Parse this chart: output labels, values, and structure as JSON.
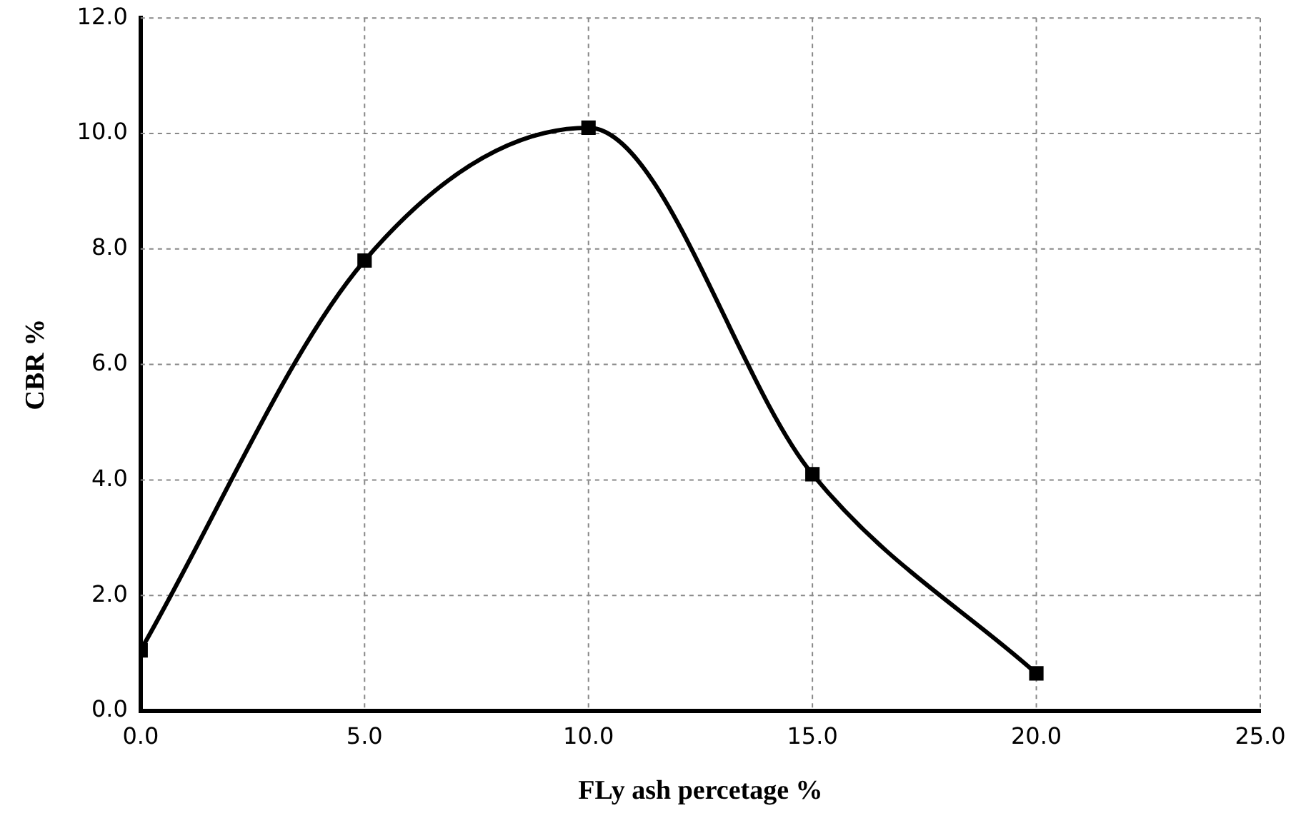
{
  "chart_data": {
    "type": "line",
    "xlabel": "FLy ash percetage %",
    "ylabel": "CBR %",
    "x": [
      0,
      5,
      10,
      15,
      20
    ],
    "series": [
      {
        "color": "#000000",
        "values": [
          1.05,
          7.8,
          10.1,
          4.1,
          0.65
        ]
      }
    ],
    "xlim": [
      0,
      25
    ],
    "xticks": [
      {
        "value": 0,
        "label": "0.0"
      },
      {
        "value": 5,
        "label": "5.0"
      },
      {
        "value": 10,
        "label": "10.0"
      },
      {
        "value": 15,
        "label": "15.0"
      },
      {
        "value": 20,
        "label": "20.0"
      },
      {
        "value": 25,
        "label": "25.0"
      }
    ],
    "ylim": [
      0,
      12
    ],
    "yticks": [
      {
        "value": 0,
        "label": "0.0"
      },
      {
        "value": 2,
        "label": "2.0"
      },
      {
        "value": 4,
        "label": "4.0"
      },
      {
        "value": 6,
        "label": "6.0"
      },
      {
        "value": 8,
        "label": "8.0"
      },
      {
        "value": 10,
        "label": "10.0"
      },
      {
        "value": 12,
        "label": "12.0"
      }
    ],
    "grid": true,
    "marker": "square",
    "line_style": "solid",
    "legend": false
  }
}
